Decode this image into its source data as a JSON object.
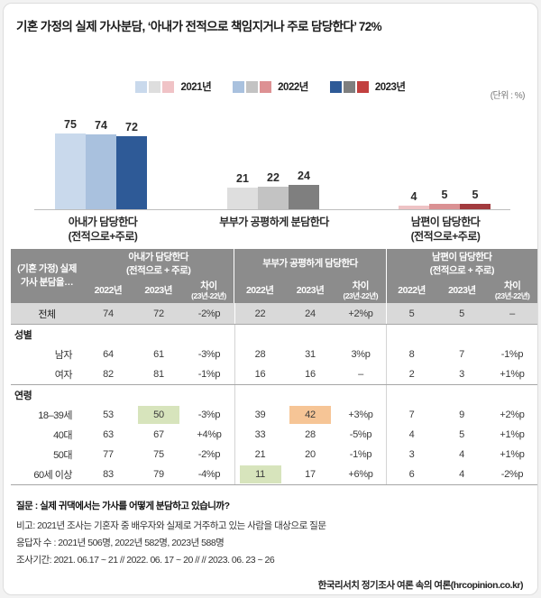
{
  "title": "기혼 가정의 실제 가사분담, ‘아내가 전적으로 책임지거나 주로 담당한다’ 72%",
  "unit_label": "(단위 : %)",
  "legend": {
    "items": [
      {
        "label": "2021년",
        "colors": [
          "#c9d9ec",
          "#dedede",
          "#f0c3c6"
        ]
      },
      {
        "label": "2022년",
        "colors": [
          "#a9c1de",
          "#c3c3c3",
          "#dd9193"
        ]
      },
      {
        "label": "2023년",
        "colors": [
          "#2e5a97",
          "#7f7f7f",
          "#c2403f"
        ]
      }
    ]
  },
  "chart_data": {
    "type": "bar",
    "unit": "%",
    "title": "기혼 가정의 실제 가사분담",
    "categories": [
      "아내가 담당한다",
      "부부가 공평하게 분담한다",
      "남편이 담당한다"
    ],
    "category_sublabels": [
      "(전적으로+주로)",
      "",
      "(전적으로+주로)"
    ],
    "series": [
      {
        "name": "2021년",
        "values": [
          75,
          21,
          4
        ]
      },
      {
        "name": "2022년",
        "values": [
          74,
          22,
          5
        ]
      },
      {
        "name": "2023년",
        "values": [
          72,
          24,
          5
        ]
      }
    ],
    "group_colors": [
      [
        "#c9d9ec",
        "#a9c1de",
        "#2e5a97"
      ],
      [
        "#dedede",
        "#c3c3c3",
        "#7f7f7f"
      ],
      [
        "#eec3c5",
        "#da9193",
        "#a23b3e"
      ]
    ],
    "ylim": [
      0,
      100
    ],
    "value_labels": true,
    "legend_position": "top",
    "grid": false
  },
  "table": {
    "col1_header": "(기혼 가정) 실제\n가사 분담을…",
    "groups": [
      {
        "title": "아내가 담당한다",
        "subtitle": "(전적으로 + 주로)"
      },
      {
        "title": "부부가 공평하게 담당한다",
        "subtitle": ""
      },
      {
        "title": "남편이 담당한다",
        "subtitle": "(전적으로 + 주로)"
      }
    ],
    "year_headers": [
      "2022년",
      "2023년"
    ],
    "diff_label": "차이",
    "diff_sublabel": "(23년-22년)",
    "rows": [
      {
        "type": "total",
        "label": "전체",
        "cells": [
          "74",
          "72",
          "-2%p",
          "22",
          "24",
          "+2%p",
          "5",
          "5",
          "–"
        ]
      },
      {
        "type": "section",
        "label": "성별",
        "cells": [
          "",
          "",
          "",
          "",
          "",
          "",
          "",
          "",
          ""
        ]
      },
      {
        "type": "data",
        "label": "남자",
        "cells": [
          "64",
          "61",
          "-3%p",
          "28",
          "31",
          "3%p",
          "8",
          "7",
          "-1%p"
        ]
      },
      {
        "type": "data",
        "label": "여자",
        "cells": [
          "82",
          "81",
          "-1%p",
          "16",
          "16",
          "–",
          "2",
          "3",
          "+1%p"
        ],
        "divider": true
      },
      {
        "type": "section",
        "label": "연령",
        "cells": [
          "",
          "",
          "",
          "",
          "",
          "",
          "",
          "",
          ""
        ]
      },
      {
        "type": "data",
        "label": "18–39세",
        "cells": [
          "53",
          "50",
          "-3%p",
          "39",
          "42",
          "+3%p",
          "7",
          "9",
          "+2%p"
        ],
        "highlights": {
          "1": "green",
          "4": "orange"
        }
      },
      {
        "type": "data",
        "label": "40대",
        "cells": [
          "63",
          "67",
          "+4%p",
          "33",
          "28",
          "-5%p",
          "4",
          "5",
          "+1%p"
        ]
      },
      {
        "type": "data",
        "label": "50대",
        "cells": [
          "77",
          "75",
          "-2%p",
          "21",
          "20",
          "-1%p",
          "3",
          "4",
          "+1%p"
        ]
      },
      {
        "type": "data",
        "label": "60세 이상",
        "cells": [
          "83",
          "79",
          "-4%p",
          "11",
          "17",
          "+6%p",
          "6",
          "4",
          "-2%p"
        ],
        "divider": true,
        "highlights": {
          "3": "green"
        }
      }
    ],
    "highlight_colors": {
      "green": "#d7e4bc",
      "orange": "#f6c596"
    }
  },
  "footer": {
    "question": "질문 : 실제 귀댁에서는 가사를 어떻게 분담하고 있습니까?",
    "note": "비고: 2021년 조사는 기혼자 중 배우자와 실제로 거주하고 있는 사람을 대상으로 질문",
    "respondents": "응답자 수 : 2021년 506명, 2022년 582명, 2023년 588명",
    "period": "조사기간: 2021. 06.17 ~ 21 // 2022. 06. 17 ~ 20 // // 2023. 06. 23 ~ 26",
    "source": "한국리서치 정기조사 여론 속의 여론(hrcopinion.co.kr)"
  }
}
